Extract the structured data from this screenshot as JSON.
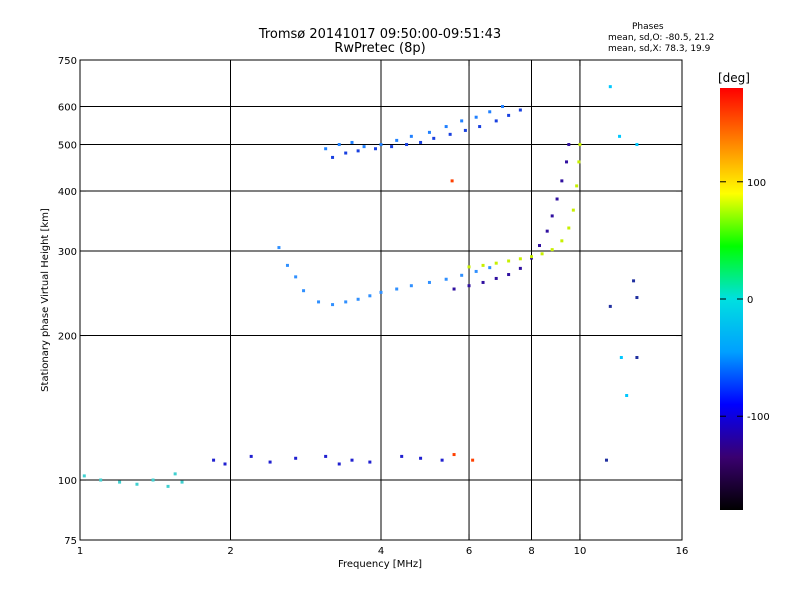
{
  "title": "Tromsø 20141017 09:50:00-09:51:43",
  "subtitle": "RwPretec (8p)",
  "stats": {
    "heading": "Phases",
    "line_o": "mean, sd,O: -80.5, 21.2",
    "line_x": "mean, sd,X: 78.3, 19.9"
  },
  "chart_data": {
    "type": "scatter",
    "xlabel": "Frequency [MHz]",
    "ylabel": "Stationary phase Virtual Height [km]",
    "xscale": "log",
    "yscale": "log",
    "xlim": [
      1,
      16
    ],
    "ylim": [
      75,
      750
    ],
    "xticks": [
      1,
      2,
      4,
      6,
      8,
      10,
      16
    ],
    "yticks": [
      75,
      100,
      200,
      300,
      400,
      500,
      600,
      750
    ],
    "x_gridlines": [
      2,
      4,
      6,
      8,
      10
    ],
    "y_gridlines": [
      100,
      200,
      300,
      400,
      500,
      600
    ],
    "colorbar": {
      "label": "[deg]",
      "range": [
        -180,
        180
      ],
      "ticks": [
        -100,
        0,
        100
      ],
      "colormap": [
        "#000000",
        "#3a0070",
        "#0000ff",
        "#00a0ff",
        "#00e0e0",
        "#00ff00",
        "#ffff00",
        "#ff8000",
        "#ff0000"
      ]
    },
    "series": [
      {
        "color": "#2080ff",
        "points": [
          [
            3.1,
            490
          ],
          [
            3.3,
            500
          ],
          [
            3.5,
            505
          ],
          [
            3.7,
            495
          ],
          [
            4.0,
            500
          ],
          [
            4.3,
            510
          ],
          [
            4.6,
            520
          ],
          [
            5.0,
            530
          ],
          [
            5.4,
            545
          ],
          [
            5.8,
            560
          ],
          [
            6.2,
            570
          ],
          [
            6.6,
            585
          ],
          [
            7.0,
            600
          ]
        ]
      },
      {
        "color": "#1840e0",
        "points": [
          [
            3.2,
            470
          ],
          [
            3.4,
            480
          ],
          [
            3.6,
            485
          ],
          [
            3.9,
            490
          ],
          [
            4.2,
            495
          ],
          [
            4.5,
            500
          ],
          [
            4.8,
            505
          ],
          [
            5.1,
            515
          ],
          [
            5.5,
            525
          ],
          [
            5.9,
            535
          ],
          [
            6.3,
            545
          ],
          [
            6.8,
            560
          ],
          [
            7.2,
            575
          ],
          [
            7.6,
            590
          ]
        ]
      },
      {
        "color": "#3090ff",
        "points": [
          [
            2.5,
            305
          ],
          [
            2.6,
            280
          ],
          [
            2.7,
            265
          ],
          [
            2.8,
            248
          ],
          [
            3.0,
            235
          ],
          [
            3.2,
            232
          ],
          [
            3.4,
            235
          ],
          [
            3.6,
            238
          ],
          [
            3.8,
            242
          ],
          [
            4.0,
            246
          ],
          [
            4.3,
            250
          ],
          [
            4.6,
            254
          ],
          [
            5.0,
            258
          ],
          [
            5.4,
            262
          ],
          [
            5.8,
            267
          ],
          [
            6.2,
            272
          ],
          [
            6.6,
            277
          ]
        ]
      },
      {
        "color": "#3010a0",
        "points": [
          [
            5.6,
            250
          ],
          [
            6.0,
            254
          ],
          [
            6.4,
            258
          ],
          [
            6.8,
            263
          ],
          [
            7.2,
            268
          ],
          [
            7.6,
            276
          ],
          [
            8.0,
            290
          ],
          [
            8.3,
            308
          ],
          [
            8.6,
            330
          ],
          [
            8.8,
            355
          ],
          [
            9.0,
            385
          ],
          [
            9.2,
            420
          ],
          [
            9.4,
            460
          ],
          [
            9.5,
            500
          ]
        ]
      },
      {
        "color": "#c8f000",
        "points": [
          [
            6.0,
            278
          ],
          [
            6.4,
            280
          ],
          [
            6.8,
            283
          ],
          [
            7.2,
            286
          ],
          [
            7.6,
            289
          ],
          [
            8.0,
            292
          ],
          [
            8.4,
            296
          ],
          [
            8.8,
            302
          ],
          [
            9.2,
            315
          ],
          [
            9.5,
            335
          ],
          [
            9.7,
            365
          ],
          [
            9.85,
            410
          ],
          [
            9.95,
            460
          ],
          [
            10.0,
            500
          ]
        ]
      },
      {
        "color": "#40d0d0",
        "points": [
          [
            1.02,
            102
          ],
          [
            1.1,
            100
          ],
          [
            1.2,
            99
          ],
          [
            1.3,
            98
          ],
          [
            1.4,
            100
          ],
          [
            1.5,
            97
          ],
          [
            1.55,
            103
          ],
          [
            1.6,
            99
          ]
        ]
      },
      {
        "color": "#2020d0",
        "points": [
          [
            1.85,
            110
          ],
          [
            1.95,
            108
          ],
          [
            2.2,
            112
          ],
          [
            2.4,
            109
          ],
          [
            2.7,
            111
          ],
          [
            3.1,
            112
          ],
          [
            3.3,
            108
          ],
          [
            3.5,
            110
          ],
          [
            3.8,
            109
          ],
          [
            4.4,
            112
          ],
          [
            4.8,
            111
          ],
          [
            5.3,
            110
          ]
        ]
      },
      {
        "color": "#ff4000",
        "points": [
          [
            5.55,
            420
          ],
          [
            5.6,
            113
          ],
          [
            6.1,
            110
          ]
        ]
      },
      {
        "color": "#00c8ff",
        "points": [
          [
            11.5,
            660
          ],
          [
            12.0,
            520
          ],
          [
            13.0,
            500
          ],
          [
            12.1,
            180
          ],
          [
            12.4,
            150
          ]
        ]
      },
      {
        "color": "#2030a0",
        "points": [
          [
            11.3,
            110
          ],
          [
            11.5,
            230
          ],
          [
            12.8,
            260
          ],
          [
            13.0,
            240
          ],
          [
            13.0,
            180
          ]
        ]
      }
    ]
  }
}
